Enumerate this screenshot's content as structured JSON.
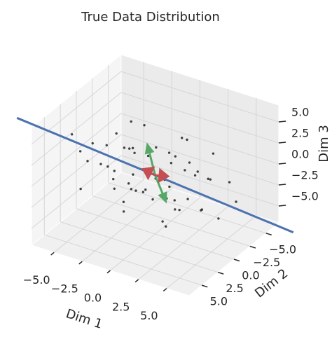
{
  "chart_data": {
    "type": "scatter3d",
    "title": "True Data Distribution",
    "x_label": "Dim 1",
    "y_label": "Dim 2",
    "z_label": "Dim 3",
    "xlim": [
      -7,
      7
    ],
    "ylim": [
      -7,
      7
    ],
    "zlim": [
      -7,
      7
    ],
    "xticks": [
      {
        "value": -5,
        "label": "−5.0"
      },
      {
        "value": -2.5,
        "label": "−2.5"
      },
      {
        "value": 0,
        "label": "0.0"
      },
      2.5,
      {
        "value": 5,
        "label": "5.0"
      }
    ],
    "yticks": [
      {
        "value": -5,
        "label": "−5.0"
      },
      {
        "value": -2.5,
        "label": "−2.5"
      },
      {
        "value": 0,
        "label": "0.0"
      },
      2.5,
      {
        "value": 5,
        "label": "5.0"
      }
    ],
    "zticks": [
      {
        "value": -5,
        "label": "−5.0"
      },
      {
        "value": -2.5,
        "label": "−2.5"
      },
      {
        "value": 0,
        "label": "0.0"
      },
      2.5,
      {
        "value": 5,
        "label": "5.0"
      }
    ],
    "grid": true,
    "series": [
      {
        "color": "#222222",
        "x": [
          -5.8,
          -5.1,
          -4.6,
          -4.2,
          -3.9,
          -3.5,
          -3.3,
          -3.0,
          -2.8,
          -2.6,
          -2.4,
          -2.2,
          -2.0,
          -1.9,
          -1.7,
          -1.5,
          -1.4,
          -1.2,
          -1.0,
          -0.9,
          -0.7,
          -0.6,
          -0.4,
          -0.3,
          -0.1,
          0.0,
          0.1,
          0.3,
          0.4,
          0.6,
          0.7,
          0.9,
          1.0,
          1.2,
          1.4,
          1.5,
          1.7,
          1.9,
          2.1,
          2.3,
          2.5,
          2.7,
          2.9,
          3.2,
          3.5,
          3.8,
          4.1,
          4.5,
          5.0,
          5.6,
          -4.0,
          -2.1,
          -0.8,
          0.5,
          1.8,
          3.0,
          -3.1,
          2.2,
          -1.1,
          0.9
        ],
        "y": [
          2.8,
          0.8,
          3.6,
          1.1,
          3.7,
          -0.1,
          1.6,
          2.3,
          -0.9,
          1.8,
          0.6,
          2.5,
          -0.3,
          3.2,
          0.5,
          1.5,
          -1.2,
          0.9,
          1.7,
          -0.5,
          2.5,
          -1.2,
          0.8,
          -0.2,
          1.7,
          -2.2,
          0.1,
          0.9,
          -1.8,
          1.8,
          -1.0,
          0.1,
          -1.4,
          0.9,
          -2.9,
          -0.4,
          1.2,
          -1.3,
          -0.1,
          -2.2,
          1.3,
          -1.9,
          0.0,
          -3.0,
          -1.0,
          -1.6,
          -0.1,
          -3.7,
          -1.1,
          -2.8,
          4.6,
          -2.0,
          3.5,
          -3.3,
          2.0,
          -3.8,
          -1.7,
          2.2,
          3.0,
          -3.4
        ],
        "z": [
          4.1,
          2.1,
          3.1,
          0.2,
          2.3,
          3.4,
          0.6,
          3.7,
          1.4,
          0.5,
          2.6,
          -1.0,
          1.6,
          0.7,
          2.8,
          -0.7,
          1.6,
          -1.8,
          0.7,
          1.6,
          -0.4,
          2.3,
          -1.4,
          0.7,
          -1.0,
          1.3,
          -0.3,
          -2.2,
          0.5,
          1.5,
          -1.7,
          -0.1,
          1.8,
          -1.2,
          0.3,
          -2.6,
          -1.3,
          0.6,
          -3.3,
          -0.4,
          -2.2,
          0.4,
          -1.6,
          -1.0,
          -3.3,
          0.2,
          -2.4,
          -1.2,
          -3.7,
          -2.5,
          -0.5,
          3.8,
          -2.5,
          2.6,
          -3.5,
          1.5,
          4.0,
          -3.8,
          -1.8,
          2.5
        ]
      }
    ],
    "principal_axis": {
      "color": "#4c72b0",
      "start": [
        -10,
        4,
        5
      ],
      "end": [
        10,
        -4,
        -5
      ]
    },
    "arrows": [
      {
        "color": "#55a868",
        "start": [
          0,
          0,
          0
        ],
        "end": [
          0,
          1.3,
          4.7
        ]
      },
      {
        "color": "#55a868",
        "start": [
          0,
          0,
          0
        ],
        "end": [
          0,
          -1.8,
          -4.5
        ]
      },
      {
        "color": "#c44e52",
        "start": [
          0,
          0,
          0
        ],
        "end": [
          -1.2,
          0,
          0.3
        ]
      },
      {
        "color": "#c44e52",
        "start": [
          0,
          0,
          0
        ],
        "end": [
          1.3,
          0,
          0.4
        ]
      }
    ]
  }
}
